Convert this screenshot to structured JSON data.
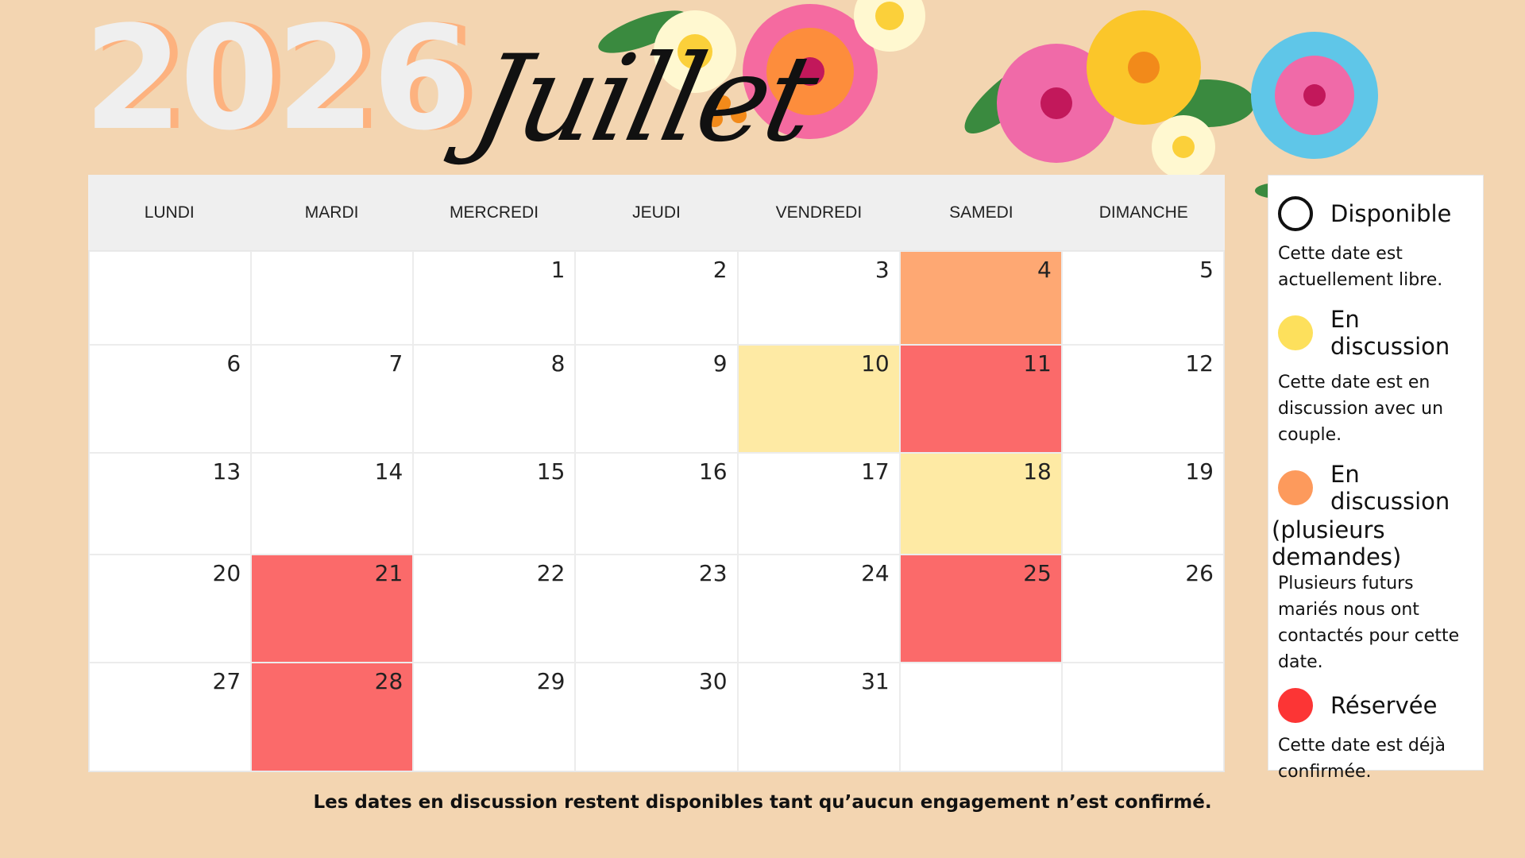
{
  "year": "2026",
  "month": "Juillet",
  "weekdays": [
    "LUNDI",
    "MARDI",
    "MERCREDI",
    "JEUDI",
    "VENDREDI",
    "SAMEDI",
    "DIMANCHE"
  ],
  "colors": {
    "background": "#f3d5b1",
    "orange": "#fea873",
    "yellow": "#feeaa4",
    "red": "#fb6a6a",
    "legend_yellow": "#fde05c",
    "legend_orange": "#fd9a5c",
    "legend_red": "#fc3535"
  },
  "days": [
    {
      "n": "",
      "s": ""
    },
    {
      "n": "",
      "s": ""
    },
    {
      "n": "1",
      "s": ""
    },
    {
      "n": "2",
      "s": ""
    },
    {
      "n": "3",
      "s": ""
    },
    {
      "n": "4",
      "s": "orange"
    },
    {
      "n": "5",
      "s": ""
    },
    {
      "n": "6",
      "s": ""
    },
    {
      "n": "7",
      "s": ""
    },
    {
      "n": "8",
      "s": ""
    },
    {
      "n": "9",
      "s": ""
    },
    {
      "n": "10",
      "s": "yellow"
    },
    {
      "n": "11",
      "s": "red"
    },
    {
      "n": "12",
      "s": ""
    },
    {
      "n": "13",
      "s": ""
    },
    {
      "n": "14",
      "s": ""
    },
    {
      "n": "15",
      "s": ""
    },
    {
      "n": "16",
      "s": ""
    },
    {
      "n": "17",
      "s": ""
    },
    {
      "n": "18",
      "s": "yellow"
    },
    {
      "n": "19",
      "s": ""
    },
    {
      "n": "20",
      "s": ""
    },
    {
      "n": "21",
      "s": "red"
    },
    {
      "n": "22",
      "s": ""
    },
    {
      "n": "23",
      "s": ""
    },
    {
      "n": "24",
      "s": ""
    },
    {
      "n": "25",
      "s": "red"
    },
    {
      "n": "26",
      "s": ""
    },
    {
      "n": "27",
      "s": ""
    },
    {
      "n": "28",
      "s": "red"
    },
    {
      "n": "29",
      "s": ""
    },
    {
      "n": "30",
      "s": ""
    },
    {
      "n": "31",
      "s": ""
    },
    {
      "n": "",
      "s": ""
    },
    {
      "n": "",
      "s": ""
    }
  ],
  "legend": [
    {
      "title": "Disponible",
      "desc": "Cette date est actuellement libre.",
      "icon": "empty-circle"
    },
    {
      "title": "En discussion",
      "desc": "Cette date est en discussion avec un couple.",
      "icon": "yellow-circle"
    },
    {
      "title": "En discussion",
      "subtitle": "(plusieurs demandes)",
      "desc": "Plusieurs futurs mariés nous ont contactés pour cette date.",
      "icon": "orange-circle"
    },
    {
      "title": "Réservée",
      "desc": "Cette date est déjà confirmée.",
      "icon": "red-circle"
    }
  ],
  "footnote": "Les dates en discussion restent disponibles tant qu’aucun engagement n’est confirmé."
}
